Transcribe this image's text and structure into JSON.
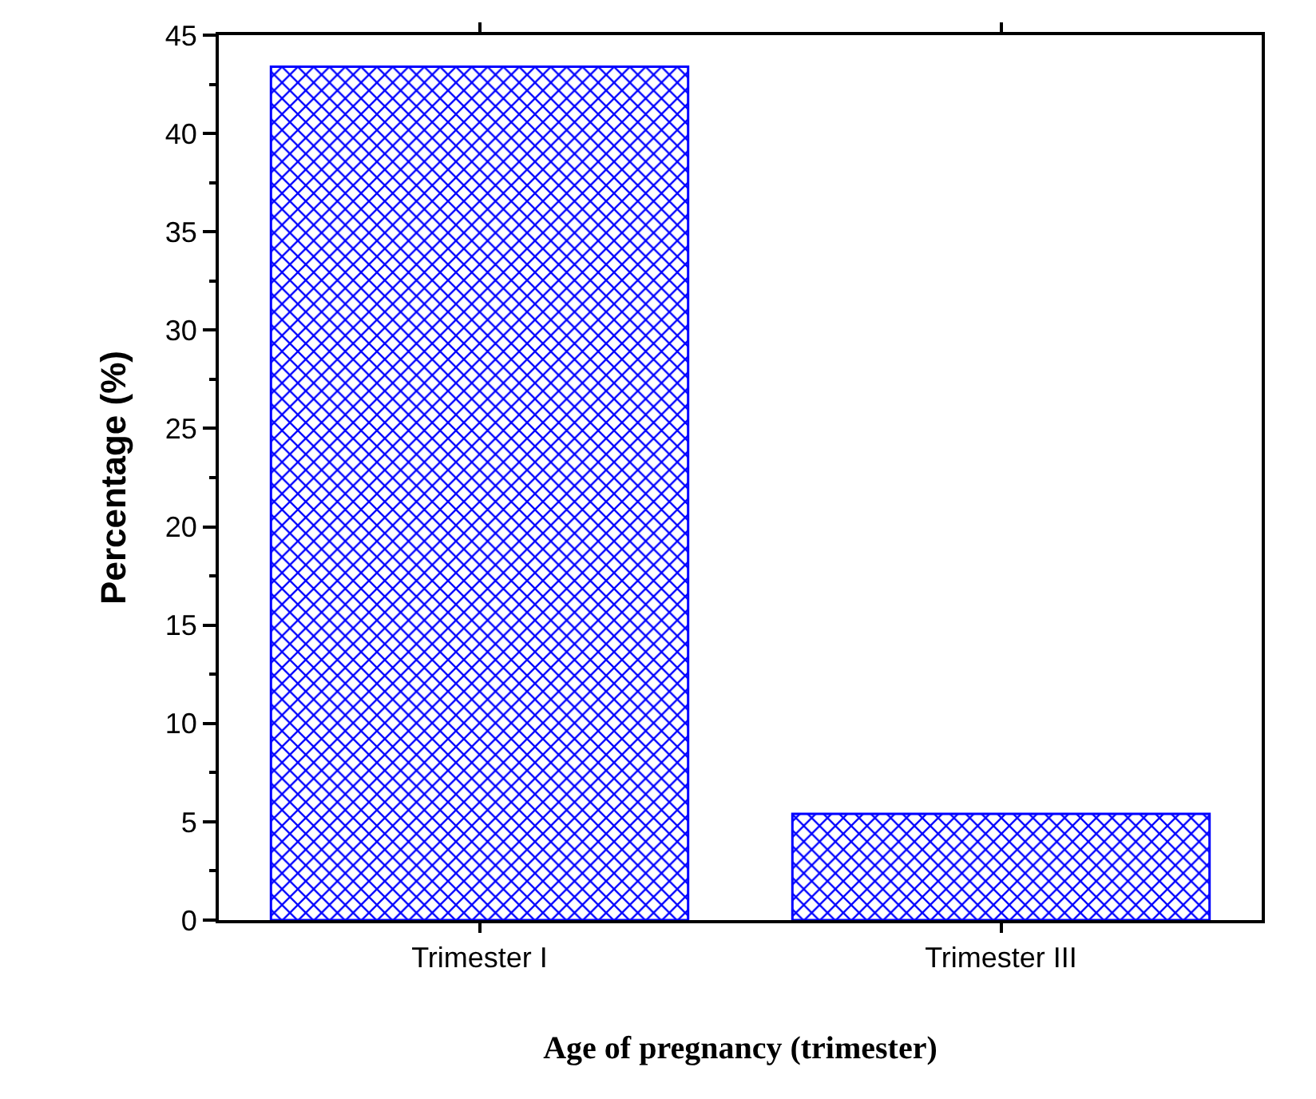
{
  "chart_data": {
    "type": "bar",
    "xlabel": "Age of pregnancy (trimester)",
    "ylabel": "Percentage (%)",
    "categories": [
      "Trimester I",
      "Trimester III"
    ],
    "values": [
      43.4,
      5.4
    ],
    "color": "#0000ff",
    "ylim": [
      0,
      45
    ],
    "yticks": [
      0,
      {
        "value": 2.5,
        "label": null
      },
      5,
      {
        "value": 7.5,
        "label": null
      },
      10,
      {
        "value": 12.5,
        "label": null
      },
      15,
      {
        "value": 17.5,
        "label": null
      },
      20,
      {
        "value": 22.5,
        "label": null
      },
      25,
      {
        "value": 27.5,
        "label": null
      },
      30,
      {
        "value": 32.5,
        "label": null
      },
      35,
      {
        "value": 37.5,
        "label": null
      },
      40,
      {
        "value": 42.5,
        "label": null
      },
      45
    ],
    "tick_labels": [
      "x",
      "y"
    ]
  }
}
